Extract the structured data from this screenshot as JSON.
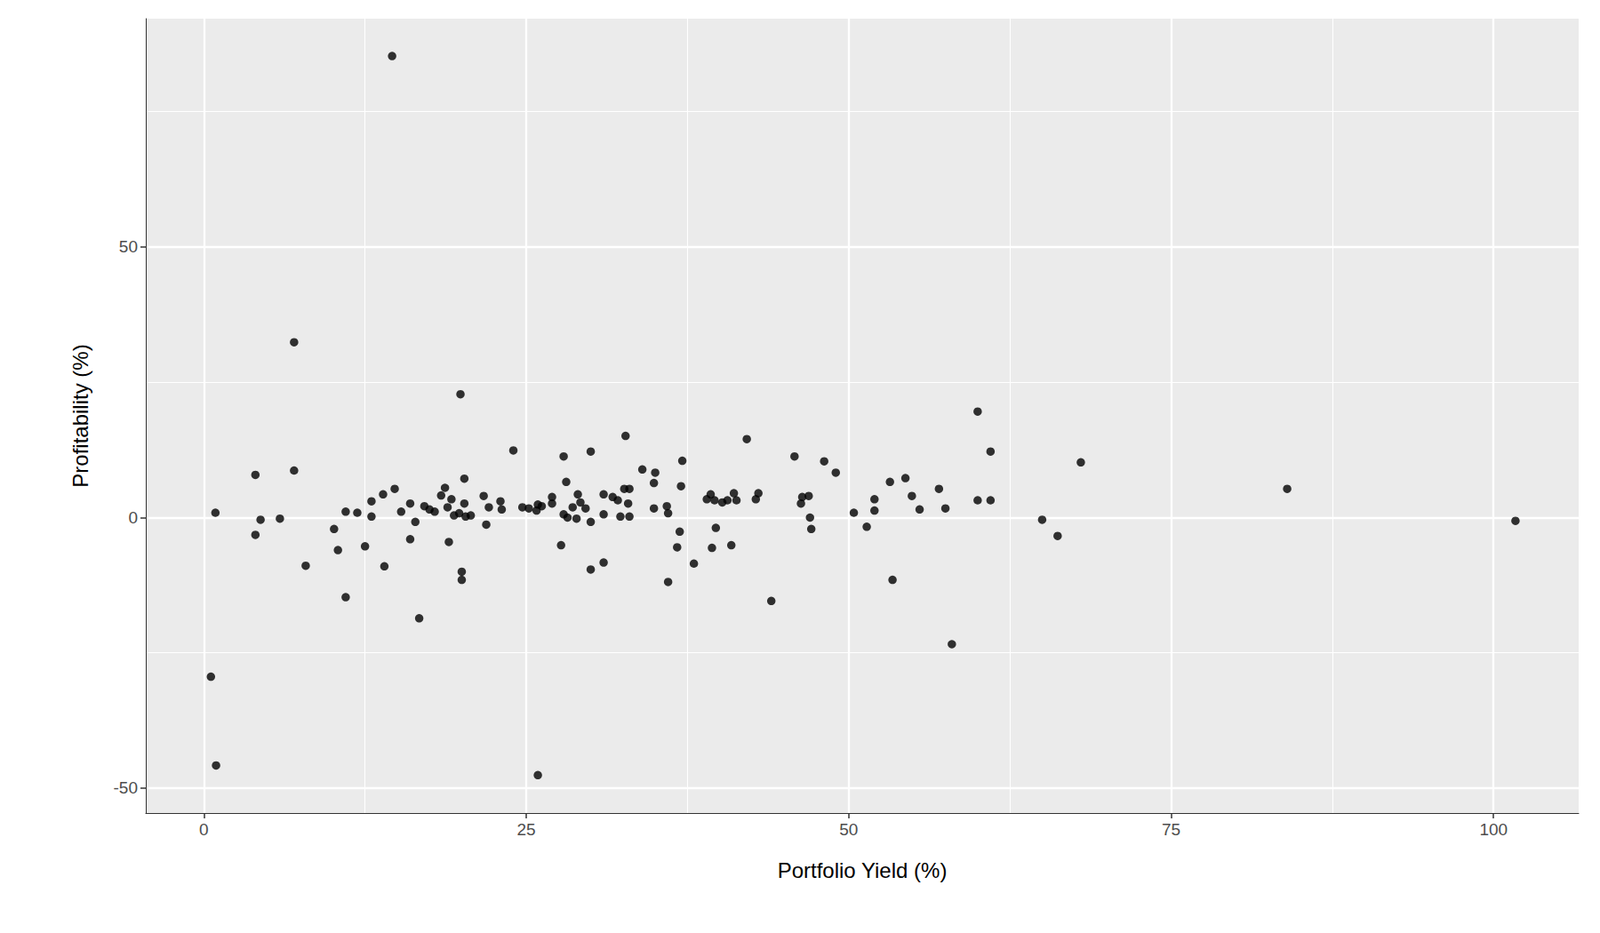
{
  "chart_data": {
    "type": "scatter",
    "x_label": "Portfolio Yield (%)",
    "y_label": "Profitability (%)",
    "color": "#000000",
    "marker": "circle",
    "grid": true,
    "xlim": [
      -4.5,
      106.6
    ],
    "ylim": [
      -54.6,
      92.2
    ],
    "xticks": [
      0,
      25,
      50,
      75,
      100
    ],
    "yticks": [
      -50,
      0,
      50
    ],
    "x": [
      14.6,
      7.0,
      19.9,
      0.55,
      0.95,
      25.9,
      0.9,
      4.0,
      7.0,
      4.0,
      4.4,
      5.9,
      7.9,
      10.1,
      10.4,
      11.0,
      11.0,
      11.9,
      12.5,
      13.0,
      13.0,
      13.9,
      14.0,
      14.8,
      15.3,
      16.0,
      16.0,
      16.4,
      16.7,
      17.1,
      17.5,
      17.9,
      18.4,
      18.7,
      18.9,
      19.0,
      19.2,
      19.4,
      19.8,
      20.0,
      20.0,
      20.2,
      20.2,
      20.3,
      20.7,
      21.7,
      21.9,
      22.1,
      23.0,
      23.1,
      24.0,
      24.7,
      25.2,
      25.8,
      25.9,
      26.2,
      27.0,
      27.0,
      27.7,
      27.9,
      28.1,
      27.9,
      28.2,
      28.6,
      28.9,
      29.0,
      29.2,
      29.6,
      30.0,
      30.0,
      30.0,
      31.0,
      31.0,
      31.0,
      31.7,
      32.1,
      32.3,
      32.7,
      32.6,
      32.9,
      33.0,
      33.0,
      34.0,
      35.0,
      34.9,
      34.9,
      35.9,
      36.0,
      36.0,
      36.7,
      36.9,
      37.0,
      37.1,
      38.0,
      39.0,
      39.3,
      39.4,
      39.6,
      39.7,
      40.2,
      40.6,
      40.9,
      41.1,
      41.3,
      42.1,
      42.8,
      43.0,
      44.0,
      45.8,
      46.3,
      46.4,
      46.9,
      47.0,
      47.1,
      48.1,
      49.0,
      50.4,
      51.4,
      52.0,
      52.0,
      53.2,
      53.4,
      54.4,
      54.9,
      55.5,
      57.0,
      57.5,
      58.0,
      60.0,
      60.0,
      61.0,
      61.0,
      65.0,
      66.2,
      68.0,
      84.0,
      101.7
    ],
    "y": [
      85.3,
      32.4,
      22.8,
      -29.4,
      -45.8,
      -47.6,
      0.9,
      7.9,
      8.7,
      -3.2,
      -0.4,
      -0.2,
      -8.9,
      -2.1,
      -6.0,
      -14.7,
      1.1,
      0.9,
      -5.3,
      3.0,
      0.2,
      4.3,
      -9.0,
      5.3,
      1.1,
      2.6,
      -4.0,
      -0.8,
      -18.6,
      2.1,
      1.5,
      1.1,
      4.1,
      5.5,
      1.9,
      -4.5,
      3.4,
      0.4,
      0.8,
      -10.0,
      -11.5,
      7.2,
      2.6,
      0.2,
      0.4,
      4.0,
      -1.3,
      1.9,
      3.0,
      1.5,
      12.4,
      1.9,
      1.7,
      1.3,
      2.4,
      2.1,
      3.8,
      2.6,
      -5.1,
      11.3,
      6.6,
      0.6,
      0.0,
      1.9,
      -0.2,
      4.3,
      2.8,
      1.7,
      12.2,
      -0.8,
      -9.6,
      -8.3,
      4.3,
      0.6,
      3.8,
      3.2,
      0.2,
      15.1,
      5.3,
      2.6,
      0.2,
      5.3,
      8.9,
      8.3,
      6.4,
      1.7,
      2.1,
      0.8,
      -11.9,
      -5.5,
      -2.6,
      5.8,
      10.5,
      -8.5,
      3.4,
      4.3,
      -5.6,
      3.2,
      -1.9,
      2.8,
      3.2,
      -5.1,
      4.5,
      3.2,
      14.5,
      3.4,
      4.5,
      -15.4,
      11.3,
      2.6,
      3.8,
      4.0,
      0.0,
      -2.1,
      10.4,
      8.3,
      0.9,
      -1.7,
      3.4,
      1.3,
      6.6,
      -11.5,
      7.3,
      4.0,
      1.5,
      5.3,
      1.7,
      -23.4,
      19.6,
      3.2,
      12.2,
      3.2,
      -0.4,
      -3.4,
      10.2,
      5.3,
      -0.6
    ]
  }
}
